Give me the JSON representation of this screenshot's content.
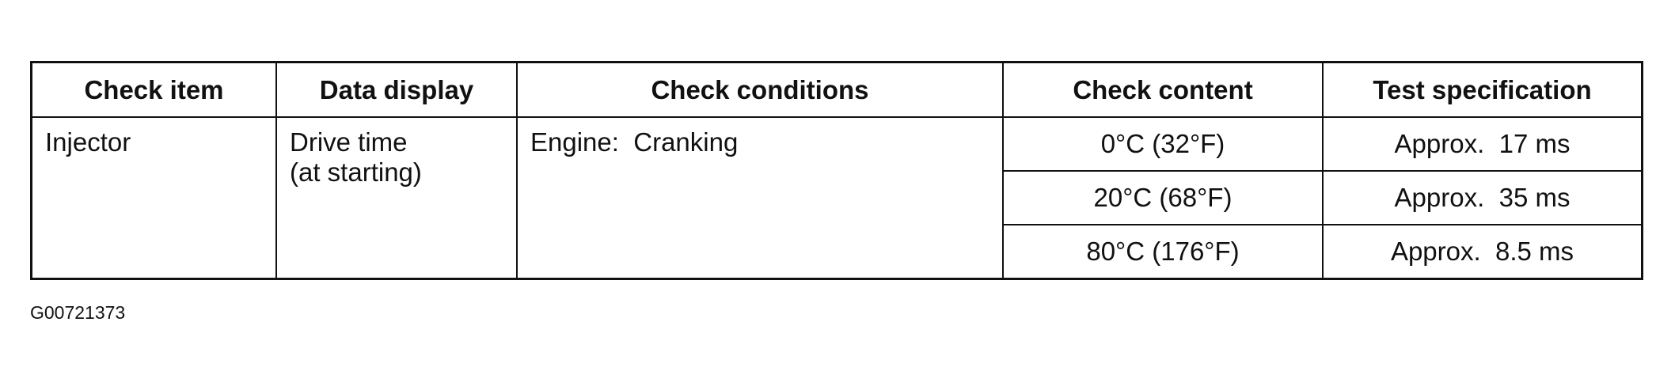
{
  "table": {
    "headers": [
      "Check item",
      "Data display",
      "Check conditions",
      "Check content",
      "Test specification"
    ],
    "check_item": "Injector",
    "data_display": [
      "Drive time",
      "(at starting)"
    ],
    "check_conditions": "Engine:  Cranking",
    "rows": [
      {
        "content": "0°C (32°F)",
        "spec": "Approx.  17 ms"
      },
      {
        "content": "20°C (68°F)",
        "spec": "Approx.  35 ms"
      },
      {
        "content": "80°C (176°F)",
        "spec": "Approx.  8.5 ms"
      }
    ]
  },
  "figure_id": "G00721373"
}
